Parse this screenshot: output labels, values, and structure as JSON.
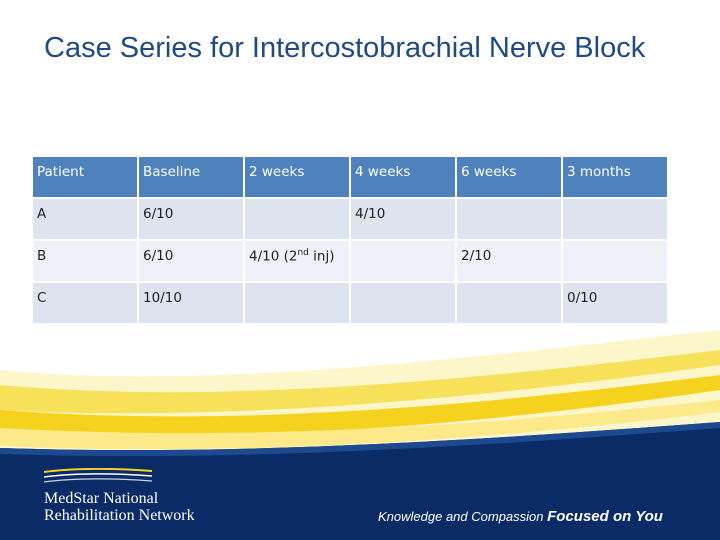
{
  "slide": {
    "title": "Case Series for Intercostobrachial Nerve Block"
  },
  "table": {
    "headers": [
      "Patient",
      "Baseline",
      "2 weeks",
      "4 weeks",
      "6 weeks",
      "3 months"
    ],
    "rows": [
      {
        "patient": "A",
        "baseline": "6/10",
        "w2": "",
        "w4": "4/10",
        "w6": "",
        "m3": ""
      },
      {
        "patient": "B",
        "baseline": "6/10",
        "w2_value": "4/10 (2",
        "w2_sup": "nd",
        "w2_tail": " inj)",
        "w4": "",
        "w6": "2/10",
        "m3": ""
      },
      {
        "patient": "C",
        "baseline": "10/10",
        "w2": "",
        "w4": "",
        "w6": "",
        "m3": "0/10"
      }
    ]
  },
  "footer": {
    "brand_line1": "MedStar National",
    "brand_line2": "Rehabilitation Network",
    "tagline_prefix": "Knowledge and Compassion",
    "tagline_bold": "Focused on You"
  },
  "colors": {
    "title": "#1f4a86",
    "header_fill": "#4f81bd",
    "row_dark": "#dde3ef",
    "row_light": "#eef1f7",
    "navy": "#0b2b66",
    "yellow": "#f5d21e"
  }
}
